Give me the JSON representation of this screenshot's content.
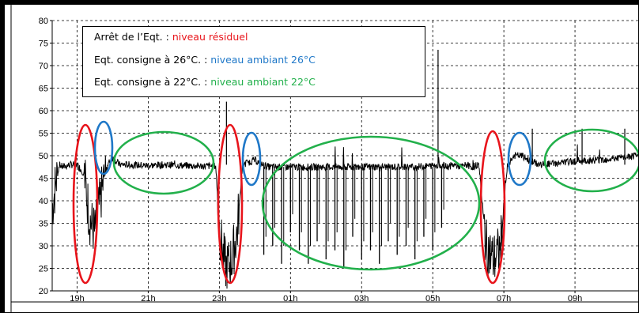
{
  "colors": {
    "red": "#e8141b",
    "blue": "#1f78c8",
    "green": "#22b04b",
    "series": "#000000"
  },
  "legend": [
    {
      "label": "Arrêt de l’Eqt. : ",
      "value": "niveau résiduel",
      "color": "#e8141b"
    },
    {
      "label": "Eqt. consigne à 26°C. : ",
      "value": "niveau ambiant 26°C",
      "color": "#1f78c8"
    },
    {
      "label": "Eqt. consigne à 22°C. : ",
      "value": "niveau ambiant 22°C",
      "color": "#22b04b"
    }
  ],
  "chart_data": {
    "type": "line",
    "xlabel": "",
    "ylabel": "",
    "ylim": [
      20,
      80
    ],
    "yticks": [
      20,
      25,
      30,
      35,
      40,
      45,
      50,
      55,
      60,
      65,
      70,
      75,
      80
    ],
    "xlim": [
      18.3,
      34.8
    ],
    "xticks": [
      {
        "label": "19h",
        "x": 19
      },
      {
        "label": "21h",
        "x": 21
      },
      {
        "label": "23h",
        "x": 23
      },
      {
        "label": "01h",
        "x": 25
      },
      {
        "label": "03h",
        "x": 27
      },
      {
        "label": "05h",
        "x": 29
      },
      {
        "label": "07h",
        "x": 31
      },
      {
        "label": "09h",
        "x": 33
      }
    ],
    "grid": true,
    "legend_position": "top-left",
    "series": [
      {
        "x": [
          18.3,
          18.4,
          18.5,
          18.6,
          18.8,
          19.0,
          19.2,
          19.35,
          19.5,
          19.65,
          19.8,
          19.9,
          20.0,
          20.2,
          20.5,
          21.0,
          21.5,
          22.0,
          22.5,
          22.9,
          23.0,
          23.1,
          23.2,
          23.35,
          23.5,
          23.65,
          23.8,
          24.0,
          24.2,
          24.4,
          24.6,
          25.0,
          25.5,
          26.0,
          26.5,
          27.0,
          27.5,
          28.0,
          28.5,
          29.0,
          29.2,
          29.4,
          29.6,
          29.8,
          29.95,
          30.1,
          30.3,
          30.5,
          30.7,
          30.9,
          31.1,
          31.3,
          31.5,
          31.7,
          32.0,
          32.5,
          33.0,
          33.5,
          34.0,
          34.5,
          34.8
        ],
        "y": [
          38,
          44,
          48,
          47.5,
          48,
          48,
          46,
          36,
          33,
          40,
          47,
          48.5,
          49.5,
          48,
          48,
          47.8,
          48,
          47.8,
          47.7,
          47.7,
          34,
          28,
          25,
          27,
          33,
          48,
          48.5,
          49,
          48,
          47.5,
          47.5,
          47.5,
          47.5,
          47.5,
          47.5,
          47.5,
          47.5,
          47.5,
          47.5,
          47.8,
          48,
          47.5,
          48,
          47.5,
          48,
          47.5,
          48,
          30,
          27,
          29,
          48,
          50,
          50,
          49,
          48,
          48.3,
          48.8,
          49,
          49.3,
          49.7,
          50
        ]
      }
    ],
    "spikes": [
      {
        "x": 29.15,
        "y": 73.5
      },
      {
        "x": 23.2,
        "y": 62
      },
      {
        "x": 31.8,
        "y": 56
      },
      {
        "x": 33.2,
        "y": 56
      },
      {
        "x": 34.4,
        "y": 56
      }
    ],
    "dips": {
      "x": [
        24.25,
        24.5,
        24.75,
        25.0,
        25.25,
        25.5,
        25.75,
        26.0,
        26.25,
        26.5,
        26.75,
        27.0,
        27.25,
        27.5,
        27.75,
        28.0,
        28.25,
        28.5,
        28.75,
        29.0,
        29.25
      ],
      "y": [
        28,
        30,
        26,
        33,
        29,
        26,
        31,
        27,
        29,
        25,
        32,
        27,
        29,
        26,
        31,
        28,
        30,
        27,
        32,
        29,
        34
      ]
    }
  }
}
